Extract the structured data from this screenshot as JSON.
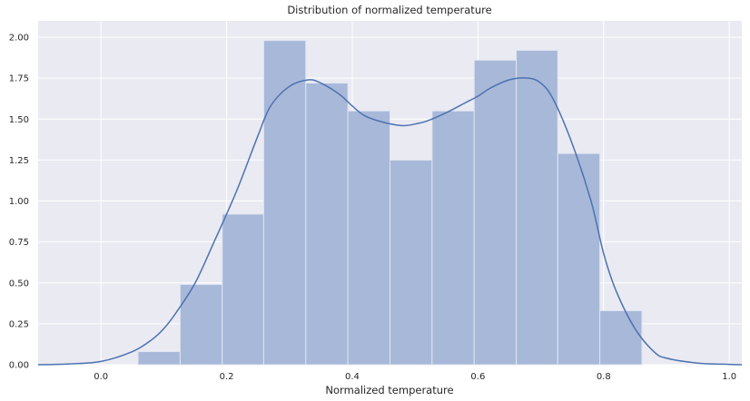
{
  "chart_data": {
    "type": "histogram",
    "title": "Distribution of normalized temperature",
    "xlabel": "Normalized temperature",
    "ylabel": "",
    "xlim": [
      -0.1,
      1.02
    ],
    "ylim": [
      0,
      2.1
    ],
    "xticks": [
      0.0,
      0.2,
      0.4,
      0.6,
      0.8,
      1.0
    ],
    "xtick_labels": [
      "0.0",
      "0.2",
      "0.4",
      "0.6",
      "0.8",
      "1.0"
    ],
    "yticks": [
      0,
      0.25,
      0.5,
      0.75,
      1.0,
      1.25,
      1.5,
      1.75,
      2.0
    ],
    "ytick_labels": [
      "0.00",
      "0.25",
      "0.50",
      "0.75",
      "1.00",
      "1.25",
      "1.50",
      "1.75",
      "2.00"
    ],
    "grid": true,
    "bins": [
      {
        "x0": 0.059,
        "x1": 0.126,
        "density": 0.08
      },
      {
        "x0": 0.126,
        "x1": 0.193,
        "density": 0.49
      },
      {
        "x0": 0.193,
        "x1": 0.259,
        "density": 0.92
      },
      {
        "x0": 0.259,
        "x1": 0.326,
        "density": 1.98
      },
      {
        "x0": 0.326,
        "x1": 0.393,
        "density": 1.72
      },
      {
        "x0": 0.393,
        "x1": 0.46,
        "density": 1.55
      },
      {
        "x0": 0.46,
        "x1": 0.527,
        "density": 1.25
      },
      {
        "x0": 0.527,
        "x1": 0.594,
        "density": 1.55
      },
      {
        "x0": 0.594,
        "x1": 0.661,
        "density": 1.86
      },
      {
        "x0": 0.661,
        "x1": 0.727,
        "density": 1.92
      },
      {
        "x0": 0.727,
        "x1": 0.794,
        "density": 1.29
      },
      {
        "x0": 0.794,
        "x1": 0.861,
        "density": 0.33
      }
    ],
    "kde": {
      "x": [
        -0.1,
        -0.05,
        0.0,
        0.05,
        0.08,
        0.1,
        0.12,
        0.15,
        0.18,
        0.2,
        0.22,
        0.25,
        0.27,
        0.3,
        0.33,
        0.35,
        0.38,
        0.4,
        0.42,
        0.45,
        0.48,
        0.5,
        0.52,
        0.55,
        0.58,
        0.6,
        0.62,
        0.65,
        0.68,
        0.7,
        0.72,
        0.75,
        0.78,
        0.8,
        0.82,
        0.85,
        0.88,
        0.9,
        0.95,
        1.0,
        1.02
      ],
      "y": [
        0.0,
        0.005,
        0.02,
        0.08,
        0.15,
        0.22,
        0.32,
        0.5,
        0.75,
        0.92,
        1.1,
        1.4,
        1.58,
        1.7,
        1.74,
        1.72,
        1.65,
        1.58,
        1.52,
        1.48,
        1.46,
        1.47,
        1.49,
        1.54,
        1.6,
        1.64,
        1.69,
        1.74,
        1.75,
        1.72,
        1.62,
        1.35,
        1.0,
        0.68,
        0.45,
        0.22,
        0.08,
        0.04,
        0.01,
        0.002,
        0.0
      ]
    },
    "colors": {
      "bar_fill": "#a8b8d8",
      "bar_edge": "#dfe5f1",
      "kde_line": "#4c72b0",
      "plot_background": "#eaeaf2",
      "grid": "#ffffff",
      "text": "#262626"
    }
  }
}
